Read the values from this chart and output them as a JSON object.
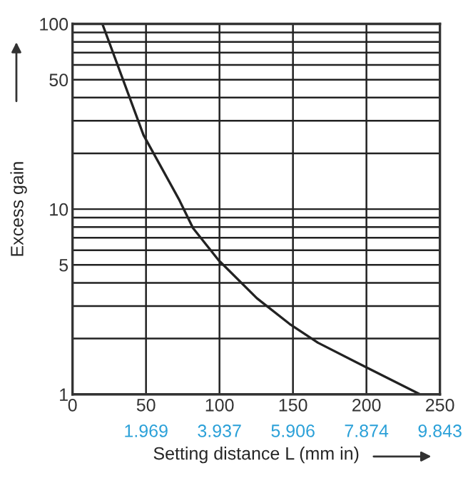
{
  "chart_data": {
    "type": "line",
    "xlabel": "Setting distance L (mm in)",
    "ylabel": "Excess gain",
    "log": "y",
    "grid": true,
    "legend": false,
    "marker": "none",
    "line_style": "solid",
    "series": [
      {
        "color": "#222222",
        "x": [
          20.3,
          48.3,
          72.4,
          82,
          99.4,
          125.5,
          147.7,
          167,
          199.8,
          236.5
        ],
        "values": [
          100,
          25.1,
          11.3,
          7.9,
          5.3,
          3.3,
          2.4,
          1.9,
          1.4,
          1
        ]
      }
    ],
    "xlim": [
      0,
      250
    ],
    "xticks": [
      0,
      50,
      100,
      150,
      200,
      250
    ],
    "x2lim": [
      0,
      9.843
    ],
    "x2ticks": [
      1.969,
      3.937,
      5.906,
      7.874,
      9.843
    ],
    "ylim": [
      1,
      100
    ],
    "yticks": [
      1,
      {
        "value": 2,
        "label": null
      },
      {
        "value": 3,
        "label": null
      },
      {
        "value": 4,
        "label": null
      },
      5,
      {
        "value": 6,
        "label": null
      },
      {
        "value": 7,
        "label": null
      },
      {
        "value": 8,
        "label": null
      },
      {
        "value": 9,
        "label": null
      },
      10,
      {
        "value": 20,
        "label": null
      },
      {
        "value": 30,
        "label": null
      },
      {
        "value": 40,
        "label": null
      },
      50,
      {
        "value": 60,
        "label": null
      },
      {
        "value": 70,
        "label": null
      },
      {
        "value": 80,
        "label": null
      },
      {
        "value": 90,
        "label": null
      },
      100
    ]
  }
}
